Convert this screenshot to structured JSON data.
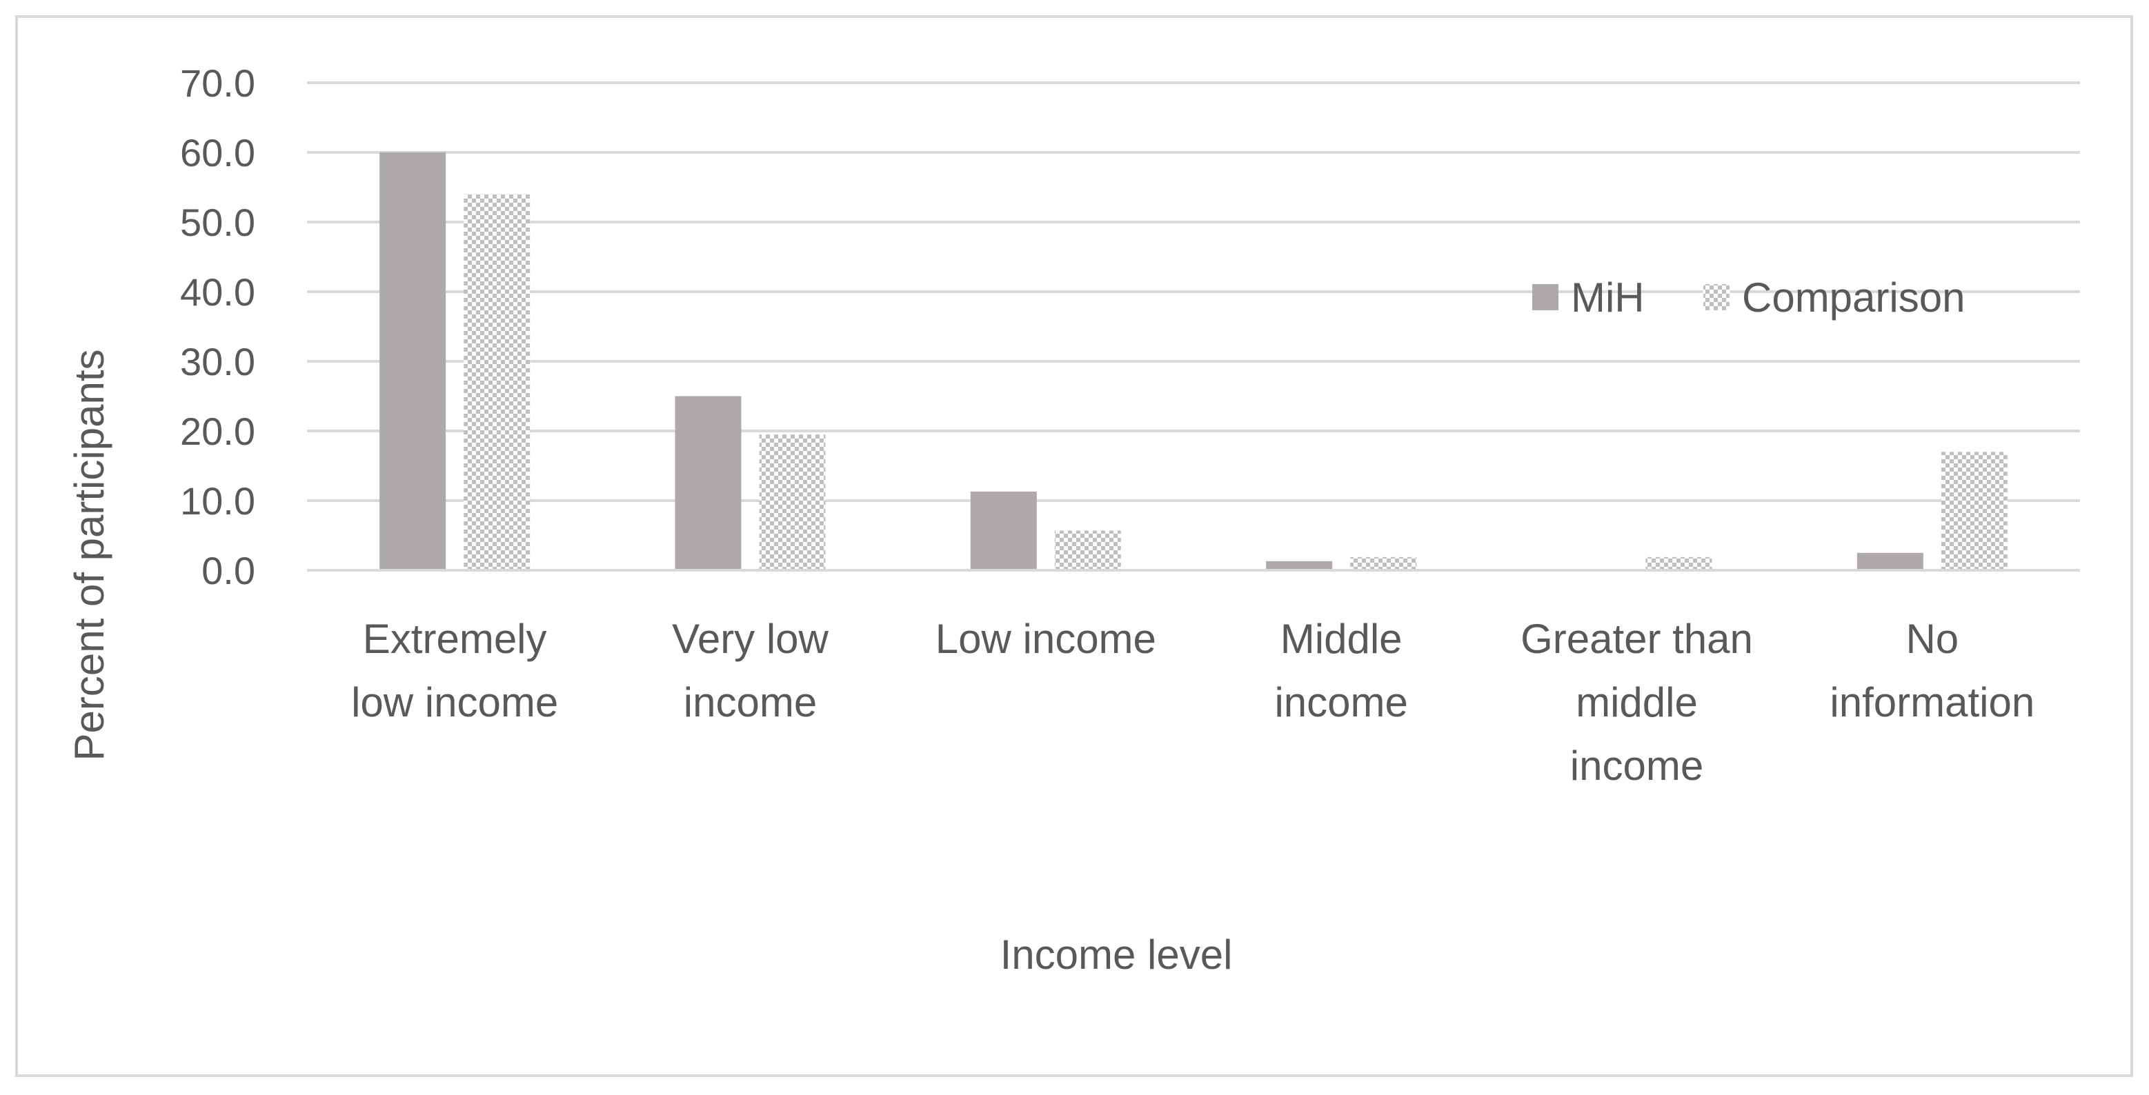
{
  "chart_data": {
    "type": "bar",
    "title": "",
    "xlabel": "Income level",
    "ylabel": "Percent of participants",
    "ylim": [
      0,
      70
    ],
    "yticks": [
      0,
      10,
      20,
      30,
      40,
      50,
      60,
      70
    ],
    "ytick_labels": [
      "0.0",
      "10.0",
      "20.0",
      "30.0",
      "40.0",
      "50.0",
      "60.0",
      "70.0"
    ],
    "grid": true,
    "legend_position": "top-right",
    "categories": [
      [
        "Extremely",
        "low income"
      ],
      [
        "Very low",
        "income"
      ],
      [
        "Low income"
      ],
      [
        "Middle",
        "income"
      ],
      [
        "Greater than",
        "middle",
        "income"
      ],
      [
        "No",
        "information"
      ]
    ],
    "series": [
      {
        "name": "MiH",
        "values": [
          60.0,
          25.0,
          11.3,
          1.3,
          0.0,
          2.5
        ],
        "color": "#aeaaaa",
        "pattern": "solid"
      },
      {
        "name": "Comparison",
        "values": [
          54.0,
          19.5,
          5.7,
          1.9,
          1.9,
          17.0
        ],
        "color": "#bfbfbf",
        "pattern": "checker"
      }
    ]
  }
}
